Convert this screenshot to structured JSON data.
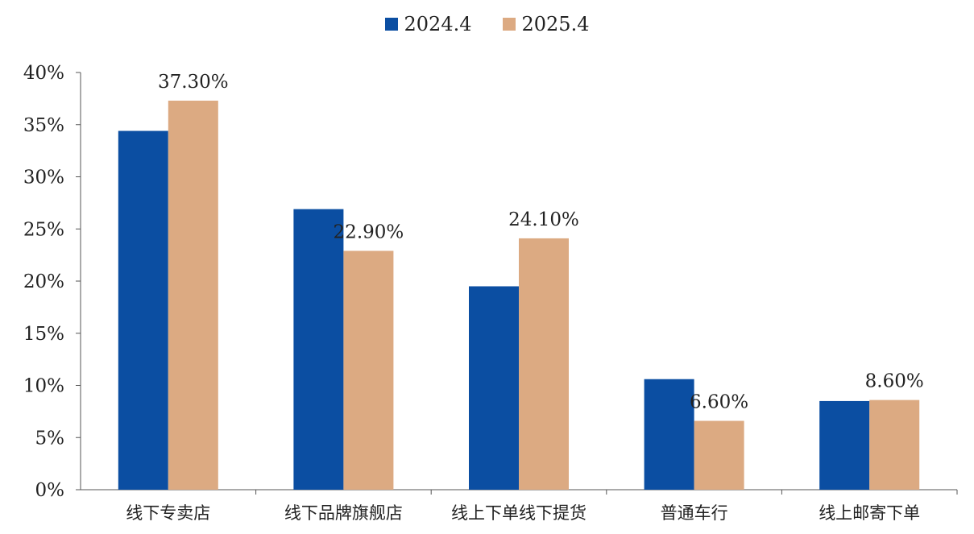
{
  "chart_data": {
    "type": "bar",
    "categories": [
      "线下专卖店",
      "线下品牌旗舰店",
      "线上下单线下提货",
      "普通车行",
      "线上邮寄下单"
    ],
    "series": [
      {
        "name": "2024.4",
        "color": "#0b4ea2",
        "values": [
          34.4,
          26.9,
          19.5,
          10.6,
          8.5
        ],
        "data_labels": [
          "",
          "",
          "",
          "",
          ""
        ]
      },
      {
        "name": "2025.4",
        "color": "#dcaa82",
        "values": [
          37.3,
          22.9,
          24.1,
          6.6,
          8.6
        ],
        "data_labels": [
          "37.30%",
          "22.90%",
          "24.10%",
          "6.60%",
          "8.60%"
        ]
      }
    ],
    "yticks": [
      "0%",
      "5%",
      "10%",
      "15%",
      "20%",
      "25%",
      "30%",
      "35%",
      "40%"
    ],
    "ylim": [
      0,
      40
    ],
    "grid": false,
    "legend": "top-center"
  }
}
